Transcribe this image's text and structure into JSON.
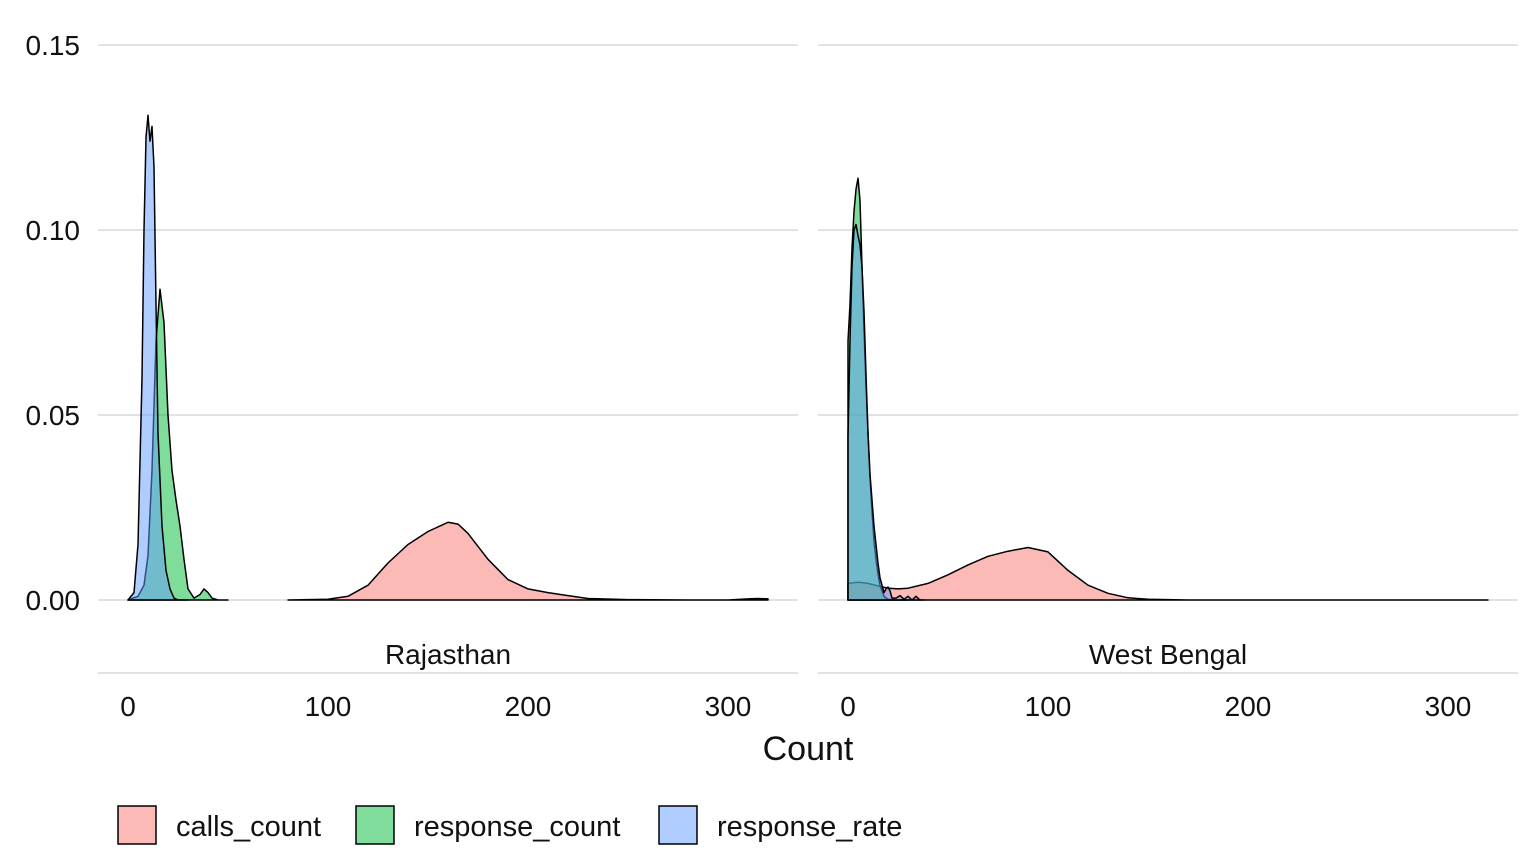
{
  "chart_data": {
    "type": "area",
    "subtype": "density",
    "facets": [
      "Rajasthan",
      "West Bengal"
    ],
    "xlabel": "Count",
    "ylabel": "",
    "xlim": [
      -15,
      335
    ],
    "ylim": [
      -0.02,
      0.155
    ],
    "x_ticks": [
      0,
      100,
      200,
      300
    ],
    "x_tick_labels": [
      "0",
      "100",
      "200",
      "300"
    ],
    "y_ticks": [
      0.0,
      0.05,
      0.1,
      0.15
    ],
    "y_tick_labels": [
      "0.00",
      "0.05",
      "0.10",
      "0.15"
    ],
    "grid": true,
    "legend_position": "bottom",
    "fill_opacity": 0.5,
    "colors": {
      "calls_count": "#F8766D",
      "response_count": "#00BA38",
      "response_rate": "#619CFF"
    },
    "series": [
      {
        "name": "calls_count",
        "facet": "Rajasthan",
        "x": [
          80,
          100,
          110,
          120,
          130,
          140,
          150,
          160,
          165,
          170,
          180,
          190,
          200,
          210,
          220,
          230,
          250,
          280,
          300,
          310,
          315,
          320
        ],
        "y": [
          0,
          0.0002,
          0.001,
          0.004,
          0.01,
          0.015,
          0.0185,
          0.021,
          0.0205,
          0.018,
          0.011,
          0.0055,
          0.003,
          0.002,
          0.0012,
          0.0004,
          0.0001,
          0,
          0,
          0.0003,
          0.0004,
          0.0003
        ]
      },
      {
        "name": "response_count",
        "facet": "Rajasthan",
        "x": [
          0,
          5,
          8,
          10,
          12,
          14,
          16,
          18,
          20,
          22,
          24,
          26,
          28,
          30,
          33,
          36,
          38,
          40,
          42,
          45,
          48,
          50
        ],
        "y": [
          0,
          0.001,
          0.004,
          0.012,
          0.035,
          0.07,
          0.084,
          0.075,
          0.05,
          0.035,
          0.027,
          0.02,
          0.011,
          0.003,
          0.0005,
          0.0015,
          0.003,
          0.002,
          0.0005,
          0,
          0,
          0
        ]
      },
      {
        "name": "response_rate",
        "facet": "Rajasthan",
        "x": [
          0,
          3,
          5,
          7,
          8,
          9,
          10,
          11,
          12,
          13,
          14,
          15,
          17,
          19,
          21,
          23,
          25,
          30
        ],
        "y": [
          0,
          0.002,
          0.015,
          0.06,
          0.1,
          0.125,
          0.131,
          0.124,
          0.128,
          0.117,
          0.08,
          0.045,
          0.02,
          0.008,
          0.003,
          0.0005,
          0,
          0
        ]
      },
      {
        "name": "calls_count",
        "facet": "West Bengal",
        "x": [
          0,
          5,
          10,
          15,
          20,
          25,
          30,
          40,
          50,
          60,
          70,
          80,
          90,
          100,
          110,
          120,
          130,
          140,
          150,
          170,
          200,
          250,
          300,
          320
        ],
        "y": [
          0.0045,
          0.0048,
          0.0045,
          0.0038,
          0.0032,
          0.003,
          0.0032,
          0.0045,
          0.0068,
          0.0095,
          0.0118,
          0.0132,
          0.0142,
          0.013,
          0.008,
          0.004,
          0.0018,
          0.0006,
          0.0002,
          0,
          0,
          0,
          0,
          0
        ]
      },
      {
        "name": "response_count",
        "facet": "West Bengal",
        "x": [
          0,
          1,
          2,
          3,
          4,
          5,
          6,
          7,
          8,
          9,
          10,
          11,
          12,
          13,
          14,
          15,
          16,
          18,
          20,
          24,
          30
        ],
        "y": [
          0.07,
          0.08,
          0.095,
          0.105,
          0.111,
          0.114,
          0.108,
          0.09,
          0.073,
          0.058,
          0.045,
          0.033,
          0.024,
          0.016,
          0.011,
          0.007,
          0.004,
          0.001,
          0.0002,
          0,
          0
        ]
      },
      {
        "name": "response_rate",
        "facet": "West Bengal",
        "x": [
          0,
          1,
          2,
          3,
          4,
          5,
          6,
          7,
          8,
          9,
          10,
          11,
          12,
          13,
          14,
          15,
          16,
          17,
          18,
          19,
          20,
          21,
          22,
          24,
          26,
          28,
          30,
          32,
          34,
          36,
          38
        ],
        "y": [
          0.044,
          0.07,
          0.09,
          0.1,
          0.1015,
          0.0985,
          0.096,
          0.09,
          0.078,
          0.061,
          0.045,
          0.034,
          0.027,
          0.02,
          0.015,
          0.01,
          0.006,
          0.004,
          0.002,
          0.003,
          0.0035,
          0.0025,
          0.0005,
          0.0005,
          0.0012,
          0.0002,
          0.001,
          0,
          0.001,
          0,
          0
        ]
      }
    ],
    "legend": {
      "entries": [
        "calls_count",
        "response_count",
        "response_rate"
      ]
    }
  }
}
